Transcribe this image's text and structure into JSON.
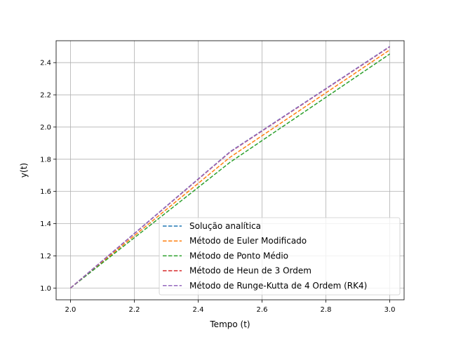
{
  "chart_data": {
    "type": "line",
    "title": "",
    "xlabel": "Tempo (t)",
    "ylabel": "y(t)",
    "xlim": [
      1.955,
      3.045
    ],
    "ylim": [
      0.927,
      2.536
    ],
    "xticks": [
      2.0,
      2.2,
      2.4,
      2.6,
      2.8,
      3.0
    ],
    "xtick_labels": [
      "2.0",
      "2.2",
      "2.4",
      "2.6",
      "2.8",
      "3.0"
    ],
    "yticks": [
      1.0,
      1.2,
      1.4,
      1.6,
      1.8,
      2.0,
      2.2,
      2.4
    ],
    "ytick_labels": [
      "1.0",
      "1.2",
      "1.4",
      "1.6",
      "1.8",
      "2.0",
      "2.2",
      "2.4"
    ],
    "grid": true,
    "legend_position": "lower right",
    "x": [
      2.0,
      2.5,
      3.0
    ],
    "series": [
      {
        "name": "Solução analítica",
        "color": "#1f77b4",
        "linestyle": "dashed",
        "values": [
          1.0,
          1.8466,
          2.5
        ]
      },
      {
        "name": "Método de Euler Modificado",
        "color": "#ff7f0e",
        "linestyle": "dashed",
        "values": [
          1.0,
          1.8125,
          2.4789
        ]
      },
      {
        "name": "Método de Ponto Médio",
        "color": "#2ca02c",
        "linestyle": "dashed",
        "values": [
          1.0,
          1.7813,
          2.4535
        ]
      },
      {
        "name": "Método de Heun de 3 Ordem",
        "color": "#d62728",
        "linestyle": "dashed",
        "values": [
          1.0,
          1.8444,
          2.4982
        ]
      },
      {
        "name": "Método de Runge-Kutta de 4 Ordem (RK4)",
        "color": "#9467bd",
        "linestyle": "dashed",
        "values": [
          1.0,
          1.8459,
          2.4995
        ]
      }
    ]
  }
}
